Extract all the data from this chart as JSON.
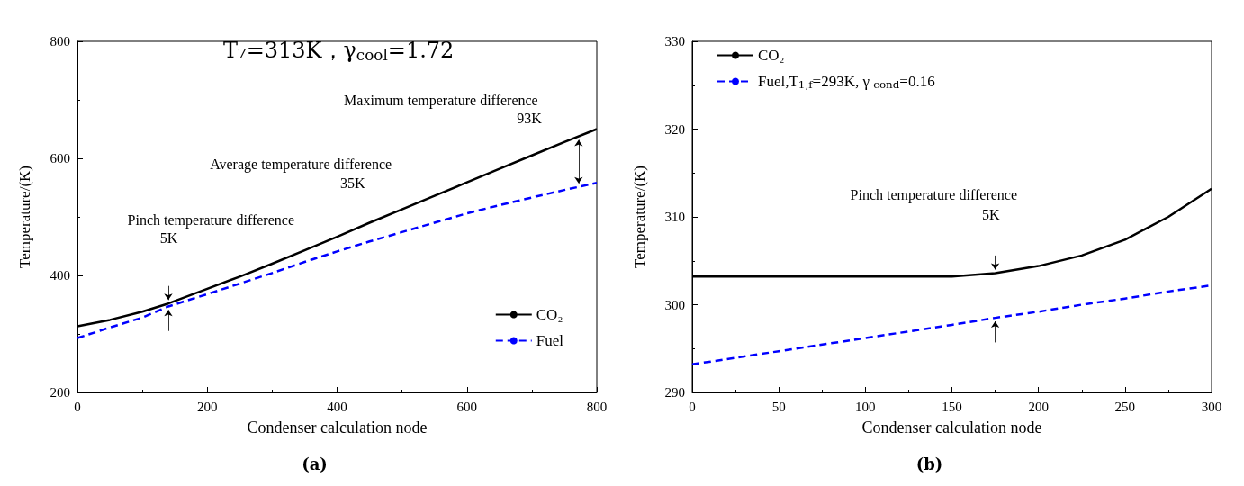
{
  "chart_data": [
    {
      "type": "line",
      "xlabel": "Condenser calculation node",
      "ylabel": "Temperature/(K)",
      "x": [
        0,
        50,
        100,
        140,
        200,
        250,
        300,
        350,
        400,
        450,
        500,
        550,
        600,
        650,
        700,
        750,
        800
      ],
      "series": [
        {
          "name": "CO₂",
          "color": "#000000",
          "line_style": "solid",
          "values": [
            313,
            324,
            338,
            352,
            377,
            398,
            420,
            443,
            466,
            490,
            513,
            536,
            559,
            582,
            605,
            628,
            650
          ]
        },
        {
          "name": "Fuel",
          "color": "#0000ff",
          "line_style": "dashed",
          "values": [
            293,
            311,
            328,
            347,
            368,
            386,
            404,
            423,
            441,
            458,
            474,
            490,
            506,
            520,
            533,
            546,
            558
          ]
        }
      ],
      "xlim": [
        0,
        800
      ],
      "xticks": [
        0,
        200,
        400,
        600,
        800
      ],
      "ylim": [
        200,
        800
      ],
      "yticks": [
        200,
        400,
        600,
        800
      ],
      "grid": false,
      "legend": "bottom right",
      "marker": "none",
      "annotations": [
        "T₇=313K，γ$_{cool}$=1.72",
        "Maximum temperature difference",
        "93K",
        "Average temperature difference",
        "35K",
        "Pinch temperature difference",
        "5K",
        "(a)"
      ]
    },
    {
      "type": "line",
      "xlabel": "Condenser calculation node",
      "ylabel": "Temperature/(K)",
      "x": [
        0,
        50,
        100,
        150,
        175,
        200,
        225,
        250,
        275,
        300
      ],
      "series": [
        {
          "name": "CO₂",
          "color": "#000000",
          "line_style": "solid",
          "values": [
            303.2,
            303.2,
            303.2,
            303.2,
            303.6,
            304.4,
            305.6,
            307.4,
            310,
            313.2
          ]
        },
        {
          "name": "Fuel,T$_{1,f}$=293K, γ $_{cond}$=0.16",
          "color": "#0000ff",
          "line_style": "dashed",
          "values": [
            293.2,
            294.7,
            296.2,
            297.7,
            298.5,
            299.2,
            300,
            300.7,
            301.5,
            302.2
          ]
        }
      ],
      "xlim": [
        0,
        300
      ],
      "xticks": [
        0,
        50,
        100,
        150,
        200,
        250,
        300
      ],
      "ylim": [
        290,
        330
      ],
      "yticks": [
        290,
        300,
        310,
        320,
        330
      ],
      "grid": false,
      "legend": "top left",
      "marker": "none",
      "annotations": [
        "Pinch temperature difference",
        "5K",
        "(b)"
      ]
    }
  ]
}
